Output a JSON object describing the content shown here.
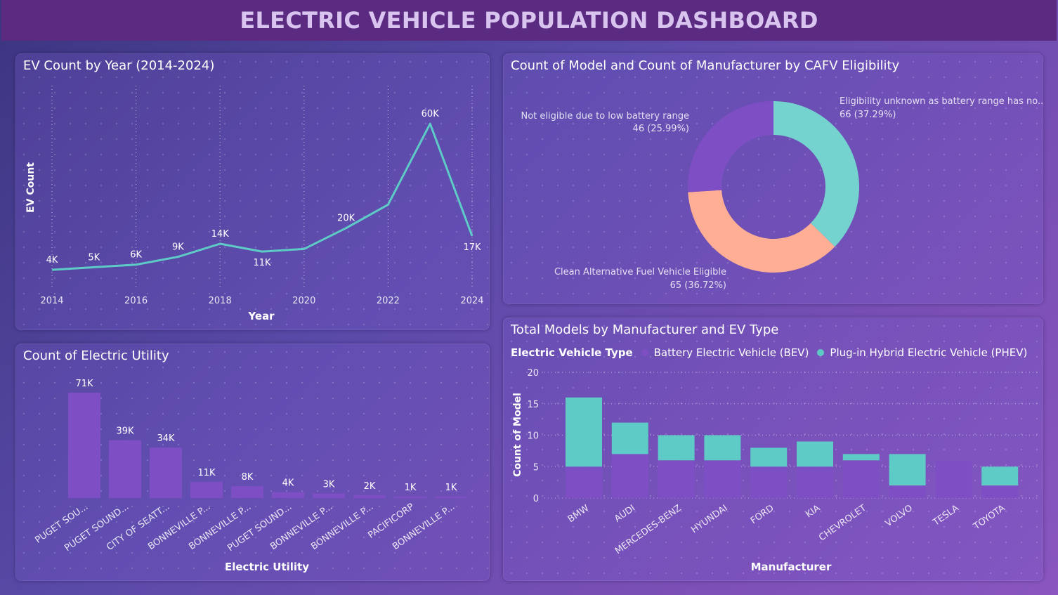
{
  "dashboard": {
    "title": "ELECTRIC VEHICLE POPULATION DASHBOARD"
  },
  "colors": {
    "teal": "#5ecbc7",
    "purple": "#7e4fc4",
    "salmon": "#fdae94",
    "title": "#d8c4ef",
    "header_bg": "#5a2b80"
  },
  "chart_data": [
    {
      "id": "ev_by_year",
      "type": "line",
      "title": "EV Count by Year (2014-2024)",
      "xlabel": "Year",
      "ylabel": "EV Count",
      "x": [
        2014,
        2015,
        2016,
        2017,
        2018,
        2019,
        2020,
        2021,
        2022,
        2023,
        2024
      ],
      "values": [
        4000,
        5000,
        6000,
        9000,
        14000,
        11000,
        12000,
        20000,
        29000,
        60000,
        17000
      ],
      "point_labels": [
        "4K",
        "5K",
        "6K",
        "9K",
        "14K",
        "11K",
        "",
        "20K",
        "",
        "60K",
        "17K"
      ],
      "x_ticks": [
        "2014",
        "2016",
        "2018",
        "2020",
        "2022",
        "2024"
      ],
      "ylim": [
        0,
        70000
      ],
      "grid": "vertical dotted",
      "color": "#5ecbc7"
    },
    {
      "id": "cafv_donut",
      "type": "pie",
      "title": "Count of Model and Count of Manufacturer by CAFV Eligibility",
      "slices": [
        {
          "name": "Eligibility unknown as battery range has no...",
          "value": 66,
          "label": "66 (37.29%)",
          "color": "#74d3cf"
        },
        {
          "name": "Clean Alternative Fuel Vehicle Eligible",
          "value": 65,
          "label": "65 (36.72%)",
          "color": "#fdae94"
        },
        {
          "name": "Not eligible due to low battery range",
          "value": 46,
          "label": "46 (25.99%)",
          "color": "#7e4fc4"
        }
      ]
    },
    {
      "id": "electric_utility",
      "type": "bar",
      "title": "Count of Electric Utility",
      "xlabel": "Electric Utility",
      "categories": [
        "PUGET SOU...",
        "PUGET SOUND...",
        "CITY OF SEATT...",
        "BONNEVILLE P...",
        "BONNEVILLE P...",
        "PUGET SOUND...",
        "BONNEVILLE P...",
        "BONNEVILLE P...",
        "PACIFICORP",
        "BONNEVILLE P..."
      ],
      "values": [
        71000,
        39000,
        34000,
        11000,
        8000,
        4000,
        3000,
        2000,
        1000,
        1000
      ],
      "value_labels": [
        "71K",
        "39K",
        "34K",
        "11K",
        "8K",
        "4K",
        "3K",
        "2K",
        "1K",
        "1K"
      ],
      "ylim": [
        0,
        75000
      ],
      "color": "#7e4fc4"
    },
    {
      "id": "models_by_manufacturer",
      "type": "bar",
      "stacked": true,
      "title": "Total Models by Manufacturer and EV Type",
      "xlabel": "Manufacturer",
      "ylabel": "Count of Model",
      "legend_title": "Electric Vehicle Type",
      "categories": [
        "BMW",
        "AUDI",
        "MERCEDES-BENZ",
        "HYUNDAI",
        "FORD",
        "KIA",
        "CHEVROLET",
        "VOLVO",
        "TESLA",
        "TOYOTA"
      ],
      "series": [
        {
          "name": "Battery Electric Vehicle (BEV)",
          "values": [
            5,
            7,
            6,
            6,
            5,
            5,
            6,
            2,
            6,
            2
          ],
          "color": "#7e4fc4"
        },
        {
          "name": "Plug-in Hybrid Electric Vehicle (PHEV)",
          "values": [
            11,
            5,
            4,
            4,
            3,
            4,
            1,
            5,
            0,
            3
          ],
          "color": "#5ecbc7"
        }
      ],
      "y_ticks": [
        "0",
        "5",
        "10",
        "15",
        "20"
      ],
      "ylim": [
        0,
        20
      ],
      "legend_position": "top-left"
    }
  ]
}
